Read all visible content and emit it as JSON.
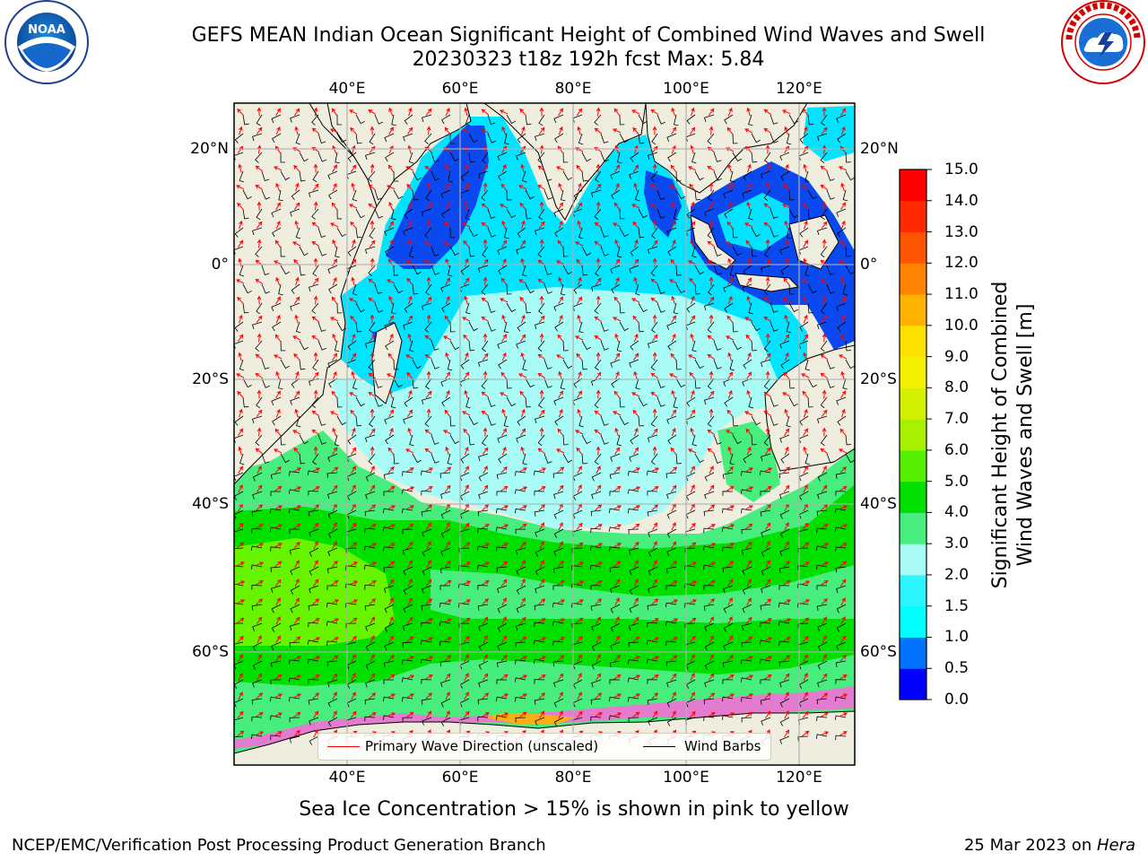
{
  "header": {
    "title_line1": "GEFS MEAN Indian Ocean Significant Height of Combined Wind Waves and Swell",
    "title_line2": "20230323 t18z 192h fcst   Max: 5.84"
  },
  "logos": {
    "left": {
      "name": "noaa-logo",
      "text": "NOAA",
      "ring_text": "NATIONAL OCEANIC AND ATMOSPHERIC ADMINISTRATION · U.S. DEPARTMENT OF COMMERCE"
    },
    "right": {
      "name": "nws-logo",
      "ring_text": "NATIONAL WEATHER SERVICE"
    }
  },
  "map": {
    "lon_ticks": [
      "40°E",
      "60°E",
      "80°E",
      "100°E",
      "120°E"
    ],
    "lat_ticks": [
      "20°N",
      "0°",
      "20°S",
      "40°S",
      "60°S"
    ],
    "grid": true,
    "land_color": "#efedde",
    "ocean_fill_note_colors": {
      "dark_blue": "#0a49f0",
      "cyan": "#00e5ff",
      "light_cyan": "#a9fcf6",
      "light_green": "#47ee7e",
      "green": "#00e000",
      "lime": "#66f400"
    }
  },
  "colorbar": {
    "label_line1": "Significant Height of Combined",
    "label_line2": "Wind Waves and Swell [m]",
    "ticks": [
      "0.0",
      "0.5",
      "1.0",
      "1.5",
      "2.0",
      "3.0",
      "4.0",
      "5.0",
      "6.0",
      "7.0",
      "8.0",
      "9.0",
      "10.0",
      "11.0",
      "12.0",
      "13.0",
      "14.0",
      "15.0"
    ],
    "colors": [
      "#0000ff",
      "#0073ff",
      "#00ffff",
      "#2cf5ff",
      "#a9fcf6",
      "#47ee7e",
      "#00e000",
      "#55f000",
      "#a6f000",
      "#d3f000",
      "#f5f000",
      "#ffe100",
      "#ffb300",
      "#ff8200",
      "#ff5500",
      "#ff2a00",
      "#ff0000"
    ]
  },
  "legend": {
    "wave_label": "Primary Wave Direction (unscaled)",
    "wave_color": "#ff0000",
    "barb_label": "Wind Barbs",
    "barb_color": "#000000"
  },
  "caption": "Sea Ice Concentration > 15% is shown in pink to yellow",
  "footer": {
    "left": "NCEP/EMC/Verification Post Processing Product Generation Branch",
    "right_prefix": "25 Mar 2023 on ",
    "right_host": "Hera"
  }
}
